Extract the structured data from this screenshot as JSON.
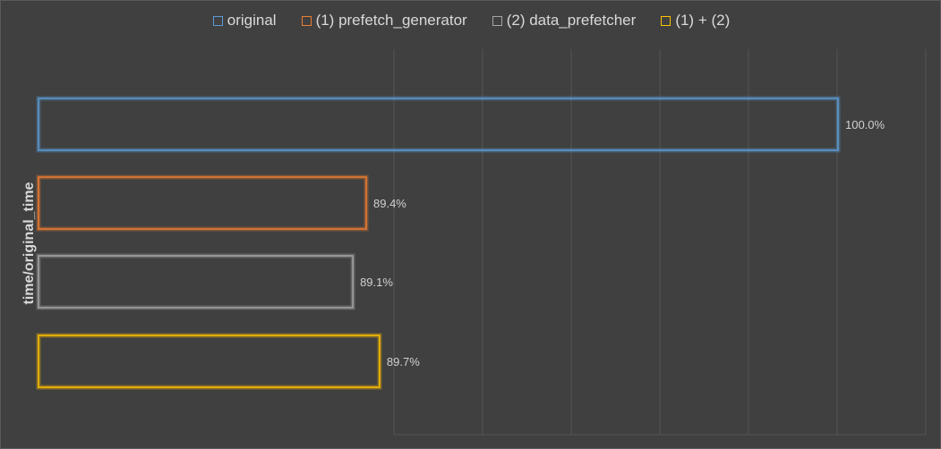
{
  "chart_data": {
    "type": "bar",
    "orientation": "horizontal",
    "ylabel": "time/original_time",
    "xlabel": "",
    "title": "",
    "legend_position": "top",
    "grid": true,
    "xlim": [
      0.85,
      1.02
    ],
    "series": [
      {
        "name": "original",
        "value": 1.0,
        "label": "100.0%",
        "color": "#5b9bd5"
      },
      {
        "name": "(1) prefetch_generator",
        "value": 0.894,
        "label": "89.4%",
        "color": "#ed7d31"
      },
      {
        "name": "(2) data_prefetcher",
        "value": 0.891,
        "label": "89.1%",
        "color": "#a5a5a5"
      },
      {
        "name": "(1) + (2)",
        "value": 0.897,
        "label": "89.7%",
        "color": "#ffc000"
      }
    ]
  }
}
